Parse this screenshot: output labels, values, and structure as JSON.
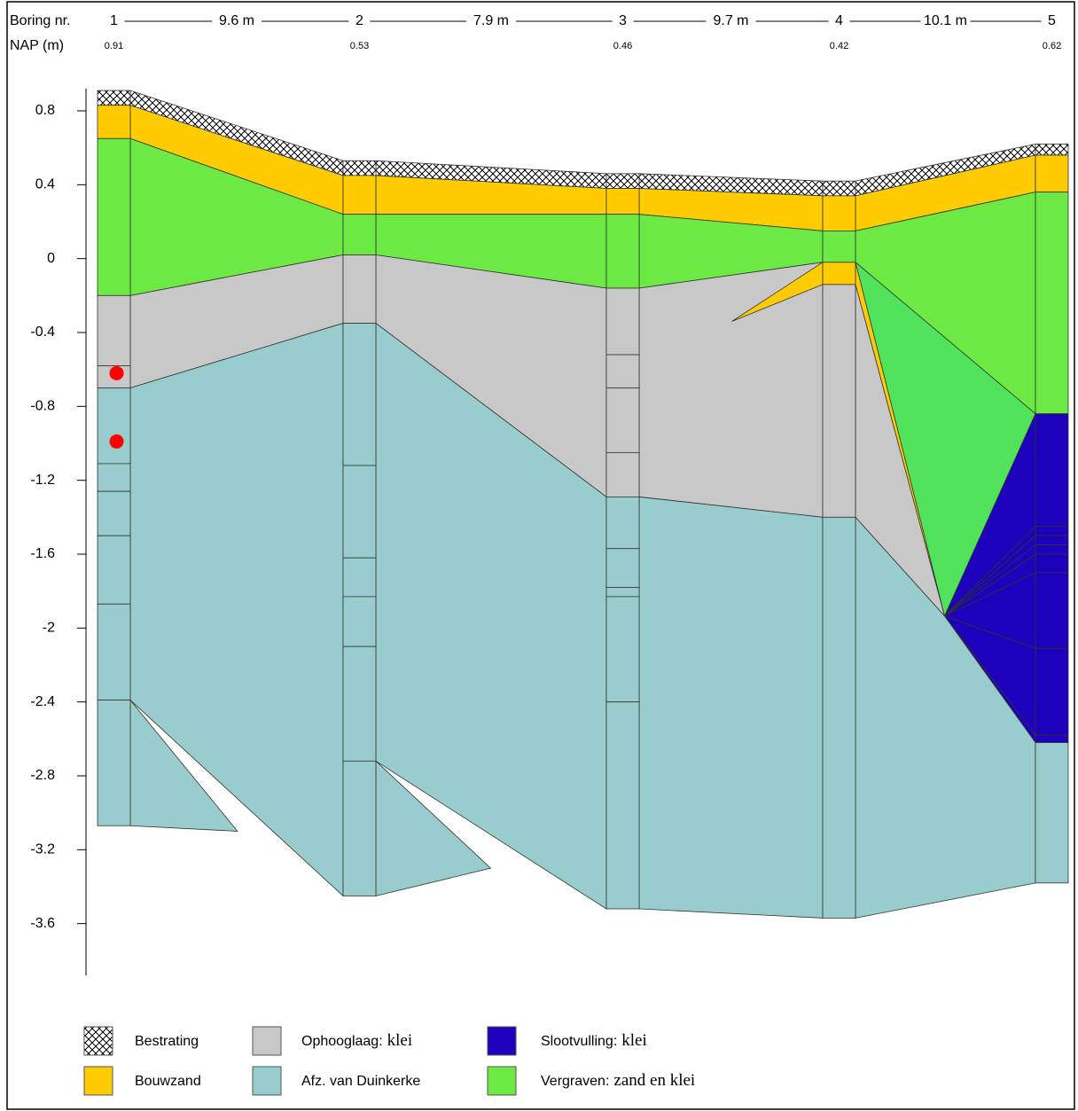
{
  "chart_data": {
    "type": "profile",
    "row_labels": [
      "Boring nr.",
      "NAP (m)"
    ],
    "ylim": [
      -3.88,
      0.92
    ],
    "yticks": [
      0.8,
      0.4,
      0,
      -0.4,
      -0.8,
      -1.2,
      -1.6,
      -2,
      -2.4,
      -2.8,
      -3.2,
      -3.6
    ],
    "soils": [
      {
        "name": "Bestrating",
        "color": "#ffffff",
        "hatch": true
      },
      {
        "name": "Bouwzand",
        "color": "#ffcc00"
      },
      {
        "name": "Ophooglaag:",
        "desc": "klei",
        "color": "#c8c8c8"
      },
      {
        "name": "Afz. van Duinkerke",
        "color": "#99cccc"
      },
      {
        "name": "Slootvulling:",
        "desc": "klei",
        "color": "#1c00bb"
      },
      {
        "name": "Vergraven:",
        "desc": "zand en klei",
        "color": "#6ce942"
      }
    ],
    "distances": [
      "9.6 m",
      "7.9 m",
      "9.7 m",
      "10.1 m"
    ],
    "borings": [
      {
        "name": "1",
        "top": 0.91,
        "layers": [
          {
            "soil": 0,
            "top": 0.91,
            "bottom": 0.83
          },
          {
            "soil": 1,
            "top": 0.83,
            "bottom": 0.65
          },
          {
            "soil": 5,
            "top": 0.65,
            "bottom": -0.2
          },
          {
            "soil": 2,
            "top": -0.2,
            "bottom": -0.58
          },
          {
            "soil": 2,
            "top": -0.58,
            "bottom": -0.7
          },
          {
            "soil": 3,
            "top": -0.7,
            "bottom": -1.11
          },
          {
            "soil": 3,
            "top": -1.11,
            "bottom": -1.26
          },
          {
            "soil": 3,
            "top": -1.26,
            "bottom": -1.5
          },
          {
            "soil": 3,
            "top": -1.5,
            "bottom": -1.87
          },
          {
            "soil": 3,
            "top": -1.87,
            "bottom": -2.39
          },
          {
            "soil": 3,
            "top": -2.39,
            "bottom": -3.07
          }
        ]
      },
      {
        "name": "2",
        "top": 0.53,
        "layers": [
          {
            "soil": 0,
            "top": 0.53,
            "bottom": 0.45
          },
          {
            "soil": 1,
            "top": 0.45,
            "bottom": 0.24
          },
          {
            "soil": 5,
            "top": 0.24,
            "bottom": 0.02
          },
          {
            "soil": 2,
            "top": 0.02,
            "bottom": -0.35
          },
          {
            "soil": 3,
            "top": -0.35,
            "bottom": -1.12
          },
          {
            "soil": 3,
            "top": -1.12,
            "bottom": -1.62
          },
          {
            "soil": 3,
            "top": -1.62,
            "bottom": -1.83
          },
          {
            "soil": 3,
            "top": -1.83,
            "bottom": -2.1
          },
          {
            "soil": 3,
            "top": -2.1,
            "bottom": -2.72
          },
          {
            "soil": 3,
            "top": -2.72,
            "bottom": -3.45
          }
        ]
      },
      {
        "name": "3",
        "top": 0.46,
        "layers": [
          {
            "soil": 0,
            "top": 0.46,
            "bottom": 0.38
          },
          {
            "soil": 1,
            "top": 0.38,
            "bottom": 0.24
          },
          {
            "soil": 5,
            "top": 0.24,
            "bottom": -0.16
          },
          {
            "soil": 2,
            "top": -0.16,
            "bottom": -0.52
          },
          {
            "soil": 2,
            "top": -0.52,
            "bottom": -0.7
          },
          {
            "soil": 2,
            "top": -0.7,
            "bottom": -1.05
          },
          {
            "soil": 2,
            "top": -1.05,
            "bottom": -1.29
          },
          {
            "soil": 3,
            "top": -1.29,
            "bottom": -1.57
          },
          {
            "soil": 3,
            "top": -1.57,
            "bottom": -1.78
          },
          {
            "soil": 3,
            "top": -1.78,
            "bottom": -1.83
          },
          {
            "soil": 3,
            "top": -1.83,
            "bottom": -2.4
          },
          {
            "soil": 3,
            "top": -2.4,
            "bottom": -3.52
          }
        ]
      },
      {
        "name": "4",
        "top": 0.42,
        "layers": [
          {
            "soil": 0,
            "top": 0.42,
            "bottom": 0.34
          },
          {
            "soil": 1,
            "top": 0.34,
            "bottom": 0.15
          },
          {
            "soil": 5,
            "top": 0.15,
            "bottom": -0.02
          },
          {
            "soil": 1,
            "top": -0.02,
            "bottom": -0.14
          },
          {
            "soil": 2,
            "top": -0.14,
            "bottom": -1.4
          },
          {
            "soil": 3,
            "top": -1.4,
            "bottom": -3.57
          }
        ]
      },
      {
        "name": "5",
        "top": 0.62,
        "layers": [
          {
            "soil": 0,
            "top": 0.62,
            "bottom": 0.56
          },
          {
            "soil": 1,
            "top": 0.56,
            "bottom": 0.36
          },
          {
            "soil": 5,
            "top": 0.36,
            "bottom": -0.84
          },
          {
            "soil": 4,
            "top": -0.84,
            "bottom": -1.45
          },
          {
            "soil": 4,
            "top": -1.45,
            "bottom": -1.5
          },
          {
            "soil": 4,
            "top": -1.5,
            "bottom": -1.55
          },
          {
            "soil": 4,
            "top": -1.55,
            "bottom": -1.6
          },
          {
            "soil": 4,
            "top": -1.6,
            "bottom": -1.7
          },
          {
            "soil": 4,
            "top": -1.7,
            "bottom": -2.11
          },
          {
            "soil": 4,
            "top": -2.11,
            "bottom": -2.58
          },
          {
            "soil": 4,
            "top": -2.58,
            "bottom": -2.62
          },
          {
            "soil": 3,
            "top": -2.62,
            "bottom": -3.38
          }
        ]
      }
    ],
    "fills": [
      {
        "panel": 0,
        "soil": 0,
        "points": [
          [
            0,
            0.91
          ],
          [
            1,
            0.53
          ],
          [
            1,
            0.45
          ],
          [
            0,
            0.83
          ]
        ]
      },
      {
        "panel": 0,
        "soil": 1,
        "points": [
          [
            0,
            0.83
          ],
          [
            1,
            0.45
          ],
          [
            1,
            0.24
          ],
          [
            0,
            0.65
          ]
        ]
      },
      {
        "panel": 0,
        "soil": 5,
        "points": [
          [
            0,
            0.65
          ],
          [
            1,
            0.24
          ],
          [
            1,
            0.02
          ],
          [
            0,
            -0.2
          ]
        ]
      },
      {
        "panel": 0,
        "soil": 2,
        "points": [
          [
            0,
            -0.2
          ],
          [
            1,
            0.02
          ],
          [
            1,
            -0.35
          ],
          [
            0,
            -0.7
          ]
        ]
      },
      {
        "panel": 0,
        "soil": 3,
        "points": [
          [
            0,
            -0.7
          ],
          [
            1,
            -0.35
          ],
          [
            1,
            -3.45
          ],
          [
            0,
            -2.39
          ]
        ]
      },
      {
        "panel": 0,
        "soil": 3,
        "points": [
          [
            0,
            -2.39
          ],
          [
            0.504,
            -3.1
          ],
          [
            0,
            -3.07
          ]
        ]
      },
      {
        "panel": 1,
        "soil": 0,
        "points": [
          [
            0,
            0.53
          ],
          [
            1,
            0.46
          ],
          [
            1,
            0.38
          ],
          [
            0,
            0.45
          ]
        ]
      },
      {
        "panel": 1,
        "soil": 1,
        "points": [
          [
            0,
            0.45
          ],
          [
            1,
            0.38
          ],
          [
            1,
            0.24
          ],
          [
            0,
            0.24
          ]
        ]
      },
      {
        "panel": 1,
        "soil": 5,
        "points": [
          [
            0,
            0.24
          ],
          [
            1,
            0.24
          ],
          [
            1,
            -0.16
          ],
          [
            0,
            0.02
          ]
        ]
      },
      {
        "panel": 1,
        "soil": 2,
        "points": [
          [
            0,
            0.02
          ],
          [
            1,
            -0.16
          ],
          [
            1,
            -1.29
          ],
          [
            0,
            -0.35
          ]
        ]
      },
      {
        "panel": 1,
        "soil": 3,
        "points": [
          [
            0,
            -0.35
          ],
          [
            1,
            -1.29
          ],
          [
            1,
            -3.52
          ],
          [
            0,
            -2.72
          ]
        ]
      },
      {
        "panel": 1,
        "soil": 3,
        "points": [
          [
            0,
            -2.72
          ],
          [
            0.498,
            -3.3
          ],
          [
            0,
            -3.45
          ]
        ]
      },
      {
        "panel": 2,
        "soil": 0,
        "points": [
          [
            0,
            0.46
          ],
          [
            1,
            0.42
          ],
          [
            1,
            0.34
          ],
          [
            0,
            0.38
          ]
        ]
      },
      {
        "panel": 2,
        "soil": 1,
        "points": [
          [
            0,
            0.38
          ],
          [
            1,
            0.34
          ],
          [
            1,
            0.15
          ],
          [
            0,
            0.24
          ]
        ]
      },
      {
        "panel": 2,
        "soil": 5,
        "points": [
          [
            0,
            0.24
          ],
          [
            1,
            0.15
          ],
          [
            1,
            -0.02
          ],
          [
            0,
            -0.16
          ]
        ]
      },
      {
        "panel": 2,
        "soil": 2,
        "points": [
          [
            0,
            -0.16
          ],
          [
            1,
            -0.02
          ],
          [
            1,
            -1.4
          ],
          [
            0,
            -1.29
          ]
        ]
      },
      {
        "panel": 2,
        "soil": 1,
        "points": [
          [
            1,
            -0.02
          ],
          [
            0.505,
            -0.34
          ],
          [
            1,
            -0.14
          ]
        ]
      },
      {
        "panel": 2,
        "soil": 3,
        "points": [
          [
            0,
            -1.29
          ],
          [
            1,
            -1.4
          ],
          [
            1,
            -3.57
          ],
          [
            0,
            -3.52
          ]
        ]
      },
      {
        "panel": 3,
        "soil": 0,
        "points": [
          [
            0,
            0.42
          ],
          [
            1,
            0.62
          ],
          [
            1,
            0.56
          ],
          [
            0,
            0.34
          ]
        ]
      },
      {
        "panel": 3,
        "soil": 1,
        "points": [
          [
            0,
            0.34
          ],
          [
            1,
            0.56
          ],
          [
            1,
            0.36
          ],
          [
            0,
            0.15
          ]
        ]
      },
      {
        "panel": 3,
        "soil": 5,
        "points": [
          [
            0,
            0.15
          ],
          [
            1,
            0.36
          ],
          [
            1,
            -0.84
          ],
          [
            0,
            -0.02
          ]
        ]
      },
      {
        "panel": 3,
        "soil": 5,
        "color": "#52e35c",
        "points": [
          [
            0,
            -0.02
          ],
          [
            1,
            -0.84
          ],
          [
            0.495,
            -1.935
          ]
        ]
      },
      {
        "panel": 3,
        "soil": 1,
        "points": [
          [
            0,
            -0.02
          ],
          [
            0.495,
            -1.935
          ],
          [
            0,
            -0.14
          ]
        ]
      },
      {
        "panel": 3,
        "soil": 2,
        "points": [
          [
            0,
            -0.14
          ],
          [
            0.495,
            -1.935
          ],
          [
            0,
            -1.4
          ]
        ]
      },
      {
        "panel": 3,
        "soil": 4,
        "points": [
          [
            1,
            -0.84
          ],
          [
            1,
            -1.45
          ],
          [
            0.495,
            -1.935
          ]
        ]
      },
      {
        "panel": 3,
        "soil": 4,
        "points": [
          [
            1,
            -1.45
          ],
          [
            1,
            -1.5
          ],
          [
            0.495,
            -1.935
          ]
        ]
      },
      {
        "panel": 3,
        "soil": 4,
        "points": [
          [
            1,
            -1.5
          ],
          [
            1,
            -1.55
          ],
          [
            0.495,
            -1.935
          ]
        ]
      },
      {
        "panel": 3,
        "soil": 4,
        "points": [
          [
            1,
            -1.55
          ],
          [
            1,
            -1.6
          ],
          [
            0.495,
            -1.935
          ]
        ]
      },
      {
        "panel": 3,
        "soil": 4,
        "points": [
          [
            1,
            -1.6
          ],
          [
            1,
            -1.7
          ],
          [
            0.495,
            -1.935
          ]
        ]
      },
      {
        "panel": 3,
        "soil": 4,
        "points": [
          [
            1,
            -1.7
          ],
          [
            1,
            -2.11
          ],
          [
            0.495,
            -1.935
          ]
        ]
      },
      {
        "panel": 3,
        "soil": 4,
        "points": [
          [
            1,
            -2.11
          ],
          [
            1,
            -2.58
          ],
          [
            0.495,
            -1.935
          ]
        ]
      },
      {
        "panel": 3,
        "soil": 4,
        "points": [
          [
            1,
            -2.58
          ],
          [
            1,
            -2.62
          ],
          [
            0.495,
            -1.935
          ]
        ]
      },
      {
        "panel": 3,
        "soil": 3,
        "points": [
          [
            0,
            -1.4
          ],
          [
            0.495,
            -1.935
          ],
          [
            1,
            -2.62
          ],
          [
            1,
            -3.38
          ],
          [
            0,
            -3.57
          ]
        ]
      }
    ],
    "samples": [
      {
        "boring": 0,
        "depth": -0.62,
        "color": "#ff0000"
      },
      {
        "boring": 0,
        "depth": -0.99,
        "color": "#ff0000"
      }
    ]
  }
}
